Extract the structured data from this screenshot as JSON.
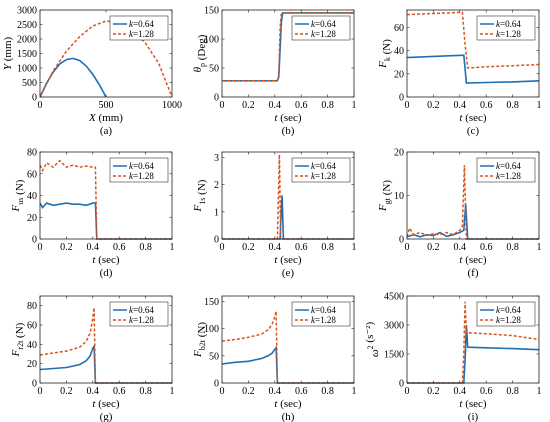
{
  "colors": {
    "blue": "#1f6fb4",
    "orange": "#d9541a",
    "axis": "#222222"
  },
  "legend": [
    {
      "k": "k",
      "val": "=0.64",
      "style": "solid",
      "color": "#1f6fb4"
    },
    {
      "k": "k",
      "val": "=1.28",
      "style": "dashed",
      "color": "#d9541a"
    }
  ],
  "chart_data": [
    {
      "type": "line",
      "caption": "(a)",
      "ylabel": {
        "main": "Y",
        "sub": "",
        "sup": "",
        "unit": "(mm)"
      },
      "xlabel": {
        "main": "X",
        "unit": "(mm)"
      },
      "xlim": [
        0,
        1000
      ],
      "ylim": [
        0,
        3000
      ],
      "xticks": [
        0,
        500,
        1000
      ],
      "xticklabels": [
        "0",
        "500",
        "1000"
      ],
      "yticks": [
        0,
        500,
        1000,
        1500,
        2000,
        2500,
        3000
      ],
      "yticklabels": [
        "0",
        "500",
        "1000",
        "1500",
        "2000",
        "2500",
        "3000"
      ],
      "series": [
        {
          "name": "k=0.64",
          "x": [
            0,
            50,
            100,
            150,
            200,
            250,
            300,
            350,
            400,
            450,
            500
          ],
          "y": [
            0,
            480,
            860,
            1140,
            1290,
            1330,
            1260,
            1070,
            780,
            420,
            0
          ]
        },
        {
          "name": "k=1.28",
          "x": [
            0,
            100,
            200,
            300,
            400,
            500,
            600,
            700,
            800,
            900,
            1000
          ],
          "y": [
            0,
            900,
            1580,
            2080,
            2450,
            2620,
            2560,
            2300,
            1850,
            1150,
            0
          ]
        }
      ]
    },
    {
      "type": "line",
      "caption": "(b)",
      "ylabel": {
        "main": "θ",
        "sub": "p",
        "sup": "",
        "unit": "(Deg)"
      },
      "xlabel": {
        "main": "t",
        "unit": "(sec)"
      },
      "xlim": [
        0,
        1
      ],
      "ylim": [
        0,
        150
      ],
      "xticks": [
        0,
        0.2,
        0.4,
        0.6,
        0.8,
        1
      ],
      "xticklabels": [
        "0",
        "0.2",
        "0.4",
        "0.6",
        "0.8",
        "1"
      ],
      "yticks": [
        0,
        50,
        100,
        150
      ],
      "yticklabels": [
        "0",
        "50",
        "100",
        "150"
      ],
      "series": [
        {
          "name": "k=0.64",
          "x": [
            0,
            0.42,
            0.43,
            0.45,
            0.46,
            0.5,
            1
          ],
          "y": [
            28,
            28,
            35,
            130,
            145,
            145,
            145
          ]
        },
        {
          "name": "k=1.28",
          "x": [
            0,
            0.42,
            0.43,
            0.44,
            0.45,
            0.5,
            1
          ],
          "y": [
            28,
            28,
            40,
            120,
            145,
            145,
            145
          ]
        }
      ]
    },
    {
      "type": "line",
      "caption": "(c)",
      "ylabel": {
        "main": "F",
        "sub": "k",
        "sup": "",
        "unit": "(N)"
      },
      "xlabel": {
        "main": "t",
        "unit": "(sec)"
      },
      "xlim": [
        0,
        1
      ],
      "ylim": [
        0,
        75
      ],
      "xticks": [
        0,
        0.2,
        0.4,
        0.6,
        0.8,
        1
      ],
      "xticklabels": [
        "0",
        "0.2",
        "0.4",
        "0.6",
        "0.8",
        "1"
      ],
      "yticks": [
        0,
        20,
        40,
        60
      ],
      "yticklabels": [
        "0",
        "20",
        "40",
        "60"
      ],
      "series": [
        {
          "name": "k=0.64",
          "x": [
            0,
            0.2,
            0.43,
            0.45,
            0.6,
            0.8,
            1
          ],
          "y": [
            34,
            35,
            36,
            12,
            12.5,
            13,
            14
          ]
        },
        {
          "name": "k=1.28",
          "x": [
            0,
            0.2,
            0.42,
            0.44,
            0.46,
            0.6,
            0.8,
            1
          ],
          "y": [
            71,
            72,
            73,
            45,
            25,
            26,
            27,
            28
          ]
        }
      ]
    },
    {
      "type": "line",
      "caption": "(d)",
      "ylabel": {
        "main": "F",
        "sub": "us",
        "sup": "",
        "unit": "(N)"
      },
      "xlabel": {
        "main": "t",
        "unit": "(sec)"
      },
      "xlim": [
        0,
        1
      ],
      "ylim": [
        0,
        80
      ],
      "xticks": [
        0,
        0.2,
        0.4,
        0.6,
        0.8,
        1
      ],
      "xticklabels": [
        "0",
        "0.2",
        "0.4",
        "0.6",
        "0.8",
        "1"
      ],
      "yticks": [
        0,
        20,
        40,
        60,
        80
      ],
      "yticklabels": [
        "0",
        "20",
        "40",
        "60",
        "80"
      ],
      "series": [
        {
          "name": "k=0.64",
          "x": [
            0,
            0.02,
            0.05,
            0.1,
            0.15,
            0.2,
            0.25,
            0.3,
            0.35,
            0.4,
            0.42,
            0.43,
            1
          ],
          "y": [
            33,
            29,
            33,
            31,
            32,
            33,
            32,
            32,
            31,
            33,
            33,
            0,
            0
          ]
        },
        {
          "name": "k=1.28",
          "x": [
            0,
            0.02,
            0.05,
            0.1,
            0.15,
            0.2,
            0.25,
            0.3,
            0.35,
            0.4,
            0.42,
            0.43,
            1
          ],
          "y": [
            68,
            63,
            70,
            66,
            72,
            66,
            68,
            66,
            67,
            66,
            66,
            0,
            0
          ]
        }
      ]
    },
    {
      "type": "line",
      "caption": "(e)",
      "ylabel": {
        "main": "F",
        "sub": "1s",
        "sup": "",
        "unit": "(N)"
      },
      "xlabel": {
        "main": "t",
        "unit": "(sec)"
      },
      "xlim": [
        0,
        1
      ],
      "ylim": [
        0,
        3.2
      ],
      "xticks": [
        0,
        0.2,
        0.4,
        0.6,
        0.8,
        1
      ],
      "xticklabels": [
        "0",
        "0.2",
        "0.4",
        "0.6",
        "0.8",
        "1"
      ],
      "yticks": [
        0,
        1,
        2,
        3
      ],
      "yticklabels": [
        "0",
        "1",
        "2",
        "3"
      ],
      "series": [
        {
          "name": "k=0.64",
          "x": [
            0,
            0.44,
            0.45,
            0.455,
            0.465,
            1
          ],
          "y": [
            0,
            0,
            1.2,
            1.6,
            0,
            0
          ]
        },
        {
          "name": "k=1.28",
          "x": [
            0,
            0.42,
            0.43,
            0.435,
            0.445,
            1
          ],
          "y": [
            0,
            0,
            2.2,
            3.1,
            0,
            0
          ]
        }
      ]
    },
    {
      "type": "line",
      "caption": "(f)",
      "ylabel": {
        "main": "F",
        "sub": "gt",
        "sup": "",
        "unit": "(N)"
      },
      "xlabel": {
        "main": "t",
        "unit": "(sec)"
      },
      "xlim": [
        0,
        1
      ],
      "ylim": [
        0,
        20
      ],
      "xticks": [
        0,
        0.2,
        0.4,
        0.6,
        0.8,
        1
      ],
      "xticklabels": [
        "0",
        "0.2",
        "0.4",
        "0.6",
        "0.8",
        "1"
      ],
      "yticks": [
        0,
        10,
        20
      ],
      "yticklabels": [
        "0",
        "10",
        "20"
      ],
      "series": [
        {
          "name": "k=0.64",
          "x": [
            0,
            0.05,
            0.1,
            0.15,
            0.2,
            0.25,
            0.3,
            0.35,
            0.4,
            0.43,
            0.445,
            0.46,
            1
          ],
          "y": [
            0.5,
            1,
            0.5,
            1,
            0.8,
            1.5,
            0.6,
            1,
            1.5,
            2,
            8,
            0,
            0
          ]
        },
        {
          "name": "k=1.28",
          "x": [
            0,
            0.02,
            0.05,
            0.1,
            0.15,
            0.2,
            0.25,
            0.3,
            0.35,
            0.4,
            0.42,
            0.435,
            0.45,
            1
          ],
          "y": [
            0.5,
            2.5,
            1,
            1.5,
            0.8,
            1.2,
            1,
            1.5,
            1,
            2,
            3,
            17,
            0,
            0
          ]
        }
      ]
    },
    {
      "type": "line",
      "caption": "(g)",
      "ylabel": {
        "main": "F",
        "sub": "r2t",
        "sup": "",
        "unit": "(N)"
      },
      "xlabel": {
        "main": "t",
        "unit": "(sec)"
      },
      "xlim": [
        0,
        1
      ],
      "ylim": [
        0,
        90
      ],
      "xticks": [
        0,
        0.2,
        0.4,
        0.6,
        0.8,
        1
      ],
      "xticklabels": [
        "0",
        "0.2",
        "0.4",
        "0.6",
        "0.8",
        "1"
      ],
      "yticks": [
        0,
        20,
        40,
        60,
        80
      ],
      "yticklabels": [
        "0",
        "20",
        "40",
        "60",
        "80"
      ],
      "series": [
        {
          "name": "k=0.64",
          "x": [
            0,
            0.1,
            0.2,
            0.3,
            0.35,
            0.38,
            0.4,
            0.41,
            0.42,
            1
          ],
          "y": [
            14,
            15,
            16,
            19,
            23,
            28,
            36,
            38,
            0,
            0
          ]
        },
        {
          "name": "k=1.28",
          "x": [
            0,
            0.1,
            0.2,
            0.3,
            0.35,
            0.38,
            0.4,
            0.41,
            0.42,
            1
          ],
          "y": [
            29,
            31,
            33,
            37,
            43,
            52,
            67,
            78,
            0,
            0
          ]
        }
      ]
    },
    {
      "type": "line",
      "caption": "(h)",
      "ylabel": {
        "main": "F",
        "sub": "b2t",
        "sup": "",
        "unit": "(N)"
      },
      "xlabel": {
        "main": "t",
        "unit": "(sec)"
      },
      "xlim": [
        0,
        1
      ],
      "ylim": [
        0,
        160
      ],
      "xticks": [
        0,
        0.2,
        0.4,
        0.6,
        0.8,
        1
      ],
      "xticklabels": [
        "0",
        "0.2",
        "0.4",
        "0.6",
        "0.8",
        "1"
      ],
      "yticks": [
        0,
        50,
        100,
        150
      ],
      "yticklabels": [
        "0",
        "50",
        "100",
        "150"
      ],
      "series": [
        {
          "name": "k=0.64",
          "x": [
            0,
            0.1,
            0.2,
            0.3,
            0.35,
            0.38,
            0.4,
            0.41,
            0.42,
            1
          ],
          "y": [
            35,
            38,
            40,
            45,
            50,
            55,
            62,
            65,
            0,
            0
          ]
        },
        {
          "name": "k=1.28",
          "x": [
            0,
            0.1,
            0.2,
            0.3,
            0.35,
            0.38,
            0.4,
            0.41,
            0.42,
            1
          ],
          "y": [
            77,
            80,
            84,
            90,
            98,
            108,
            122,
            132,
            0,
            0
          ]
        }
      ]
    },
    {
      "type": "line",
      "caption": "(i)",
      "ylabel": {
        "main": "ω",
        "sub": "",
        "sup": "2",
        "unit": "(s⁻²)"
      },
      "xlabel": {
        "main": "t",
        "unit": "(sec)"
      },
      "xlim": [
        0,
        1
      ],
      "ylim": [
        0,
        4500
      ],
      "xticks": [
        0,
        0.2,
        0.4,
        0.6,
        0.8,
        1
      ],
      "xticklabels": [
        "0",
        "0.2",
        "0.4",
        "0.6",
        "0.8",
        "1"
      ],
      "yticks": [
        0,
        1500,
        3000,
        4500
      ],
      "yticklabels": [
        "0",
        "1500",
        "3000",
        "4500"
      ],
      "series": [
        {
          "name": "k=0.64",
          "x": [
            0,
            0.43,
            0.44,
            0.45,
            0.46,
            0.6,
            0.8,
            1
          ],
          "y": [
            0,
            0,
            1200,
            3000,
            1850,
            1820,
            1780,
            1720
          ]
        },
        {
          "name": "k=1.28",
          "x": [
            0,
            0.42,
            0.43,
            0.44,
            0.45,
            0.6,
            0.8,
            1
          ],
          "y": [
            0,
            0,
            1500,
            4200,
            2600,
            2550,
            2450,
            2250
          ]
        }
      ]
    }
  ]
}
